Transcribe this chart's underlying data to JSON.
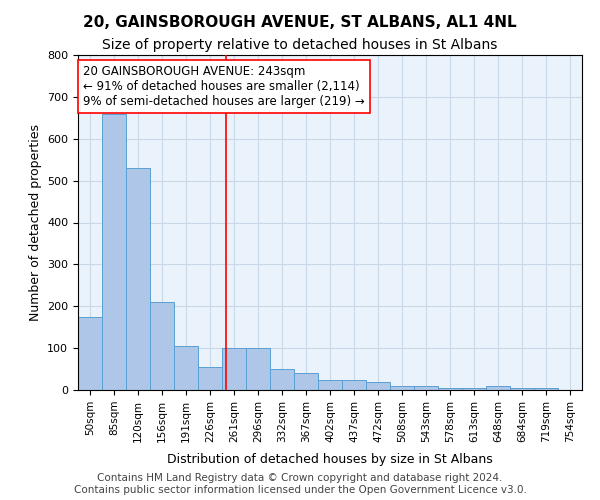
{
  "title": "20, GAINSBOROUGH AVENUE, ST ALBANS, AL1 4NL",
  "subtitle": "Size of property relative to detached houses in St Albans",
  "xlabel": "Distribution of detached houses by size in St Albans",
  "ylabel": "Number of detached properties",
  "footer_line1": "Contains HM Land Registry data © Crown copyright and database right 2024.",
  "footer_line2": "Contains public sector information licensed under the Open Government Licence v3.0.",
  "bin_labels": [
    "50sqm",
    "85sqm",
    "120sqm",
    "156sqm",
    "191sqm",
    "226sqm",
    "261sqm",
    "296sqm",
    "332sqm",
    "367sqm",
    "402sqm",
    "437sqm",
    "472sqm",
    "508sqm",
    "543sqm",
    "578sqm",
    "613sqm",
    "648sqm",
    "684sqm",
    "719sqm",
    "754sqm"
  ],
  "bar_heights": [
    175,
    660,
    530,
    210,
    105,
    55,
    100,
    100,
    50,
    40,
    25,
    25,
    20,
    10,
    10,
    5,
    5,
    10,
    5,
    5
  ],
  "bar_color": "#aec6e8",
  "bar_edge_color": "#5a9fd4",
  "grid_color": "#c8d8e8",
  "background_color": "#eaf2fb",
  "property_line_x": 5.65,
  "property_line_color": "red",
  "annotation_text": "20 GAINSBOROUGH AVENUE: 243sqm\n← 91% of detached houses are smaller (2,114)\n9% of semi-detached houses are larger (219) →",
  "annotation_box_color": "white",
  "annotation_box_edgecolor": "red",
  "ylim": [
    0,
    800
  ],
  "yticks": [
    0,
    100,
    200,
    300,
    400,
    500,
    600,
    700,
    800
  ],
  "title_fontsize": 11,
  "subtitle_fontsize": 10,
  "annotation_fontsize": 8.5,
  "ylabel_fontsize": 9,
  "xlabel_fontsize": 9,
  "footer_fontsize": 7.5,
  "tick_fontsize": 7.5,
  "ytick_fontsize": 8
}
